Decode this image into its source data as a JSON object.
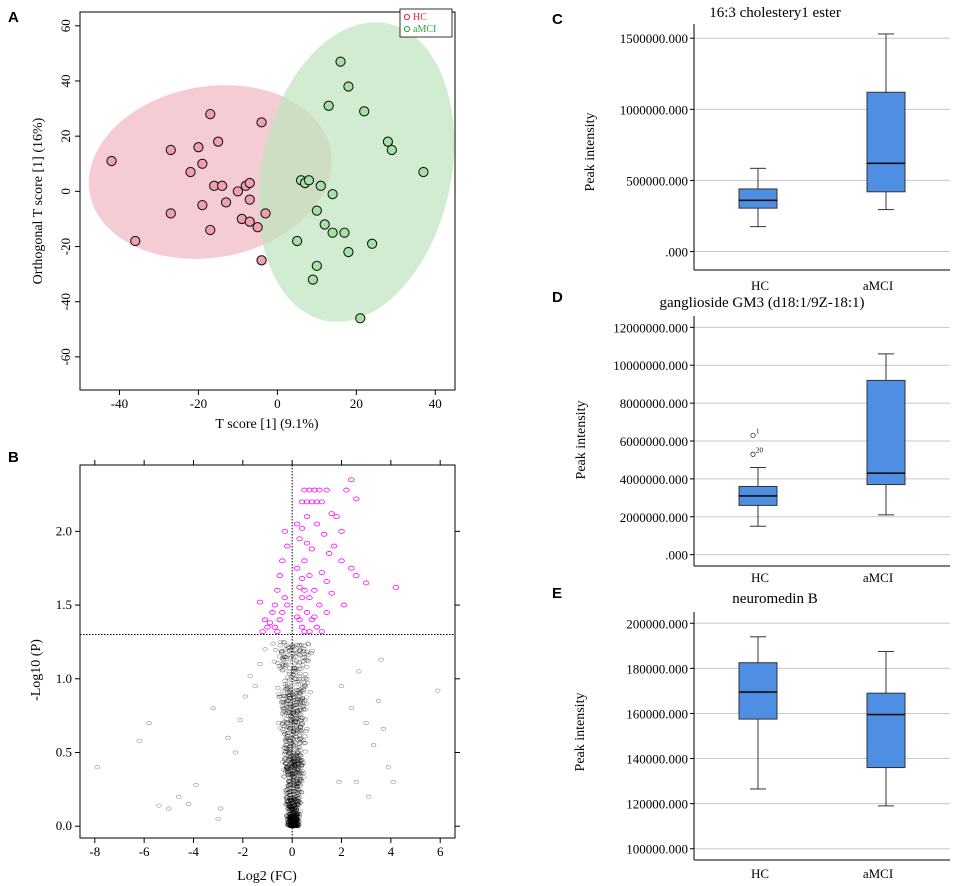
{
  "panels": {
    "a": {
      "letter": "A",
      "chart_data": {
        "type": "scatter",
        "xlabel": "T score [1] (9.1%)",
        "ylabel": "Orthogonal T score [1] (16%)",
        "xlim": [
          -50,
          45
        ],
        "ylim": [
          -72,
          65
        ],
        "xticks": [
          "-40",
          "-20",
          "0",
          "20",
          "40"
        ],
        "xtick_values": [
          -40,
          -20,
          0,
          20,
          40
        ],
        "yticks": [
          "60",
          "40",
          "20",
          "0",
          "-20",
          "-40",
          "-60"
        ],
        "ytick_values": [
          60,
          40,
          20,
          0,
          -20,
          -40,
          -60
        ],
        "legend": [
          {
            "name": "HC",
            "color": "#d9262e"
          },
          {
            "name": "aMCI",
            "color": "#2ea043"
          }
        ],
        "series": [
          {
            "name": "HC",
            "fill": "#f2a0b0",
            "ellipse_fill": "#f1b9c2",
            "points": [
              [
                -42,
                11
              ],
              [
                -36,
                -18
              ],
              [
                -27,
                15
              ],
              [
                -27,
                -8
              ],
              [
                -22,
                7
              ],
              [
                -20,
                16
              ],
              [
                -19,
                -5
              ],
              [
                -19,
                10
              ],
              [
                -17,
                -14
              ],
              [
                -17,
                28
              ],
              [
                -16,
                2
              ],
              [
                -15,
                18
              ],
              [
                -14,
                2
              ],
              [
                -13,
                -4
              ],
              [
                -10,
                0
              ],
              [
                -9,
                -10
              ],
              [
                -8,
                2
              ],
              [
                -7,
                -3
              ],
              [
                -7,
                -11
              ],
              [
                -7,
                3
              ],
              [
                -5,
                -13
              ],
              [
                -4,
                25
              ],
              [
                -4,
                -25
              ],
              [
                -3,
                -8
              ]
            ]
          },
          {
            "name": "aMCI",
            "fill": "#a7e0a5",
            "ellipse_fill": "#bfe5be",
            "points": [
              [
                5,
                -18
              ],
              [
                6,
                4
              ],
              [
                7,
                3
              ],
              [
                8,
                4
              ],
              [
                9,
                -32
              ],
              [
                10,
                -27
              ],
              [
                10,
                -7
              ],
              [
                11,
                2
              ],
              [
                12,
                -12
              ],
              [
                13,
                31
              ],
              [
                14,
                -1
              ],
              [
                14,
                -15
              ],
              [
                16,
                47
              ],
              [
                17,
                -15
              ],
              [
                18,
                -22
              ],
              [
                18,
                38
              ],
              [
                21,
                -46
              ],
              [
                22,
                29
              ],
              [
                24,
                -19
              ],
              [
                28,
                18
              ],
              [
                29,
                15
              ],
              [
                37,
                7
              ]
            ]
          }
        ],
        "ellipses": [
          {
            "series": "HC",
            "cx": -17,
            "cy": 7,
            "rx": 31,
            "ry": 31,
            "rotate": -10
          },
          {
            "series": "aMCI",
            "cx": 20,
            "cy": 7,
            "rx": 24,
            "ry": 55,
            "rotate": 12
          }
        ]
      }
    },
    "b": {
      "letter": "B",
      "chart_data": {
        "type": "scatter",
        "xlabel": "Log2 (FC)",
        "ylabel": "-Log10 (P)",
        "xlim": [
          -8.6,
          6.6
        ],
        "ylim": [
          -0.08,
          2.45
        ],
        "xticks": [
          "-8",
          "-6",
          "-4",
          "-2",
          "0",
          "2",
          "4",
          "6"
        ],
        "xtick_values": [
          -8,
          -6,
          -4,
          -2,
          0,
          2,
          4,
          6
        ],
        "yticks": [
          "0.0",
          "0.5",
          "1.0",
          "1.5",
          "2.0"
        ],
        "ytick_values": [
          0,
          0.5,
          1.0,
          1.5,
          2.0
        ],
        "threshold_y": 1.3,
        "zero_x": 0,
        "colors": {
          "significant": "#ff00ff",
          "nonsignificant": "#000000"
        },
        "significant_points": [
          [
            0.4,
            2.2
          ],
          [
            0.6,
            2.2
          ],
          [
            0.8,
            2.2
          ],
          [
            1.0,
            2.2
          ],
          [
            1.2,
            2.2
          ],
          [
            0.5,
            2.28
          ],
          [
            0.7,
            2.28
          ],
          [
            0.9,
            2.28
          ],
          [
            1.1,
            2.28
          ],
          [
            1.4,
            2.28
          ],
          [
            0.6,
            2.1
          ],
          [
            1.6,
            2.12
          ],
          [
            1.8,
            2.1
          ],
          [
            2.0,
            2.0
          ],
          [
            2.2,
            2.28
          ],
          [
            2.4,
            2.35
          ],
          [
            2.6,
            2.22
          ],
          [
            1.3,
            1.98
          ],
          [
            1.5,
            1.85
          ],
          [
            1.7,
            1.9
          ],
          [
            2.0,
            1.8
          ],
          [
            2.4,
            1.75
          ],
          [
            2.6,
            1.7
          ],
          [
            3.0,
            1.65
          ],
          [
            4.2,
            1.62
          ],
          [
            0.3,
            1.95
          ],
          [
            0.5,
            1.8
          ],
          [
            0.7,
            1.7
          ],
          [
            0.9,
            1.6
          ],
          [
            1.1,
            1.5
          ],
          [
            0.4,
            1.55
          ],
          [
            0.6,
            1.45
          ],
          [
            0.8,
            1.4
          ],
          [
            1.0,
            1.35
          ],
          [
            0.3,
            1.4
          ],
          [
            0.5,
            1.32
          ],
          [
            0.2,
            1.75
          ],
          [
            0.3,
            1.62
          ],
          [
            0.4,
            1.68
          ],
          [
            0.6,
            1.92
          ],
          [
            0.7,
            1.55
          ],
          [
            0.9,
            1.42
          ],
          [
            1.2,
            1.32
          ],
          [
            -0.2,
            1.9
          ],
          [
            -0.3,
            2.0
          ],
          [
            -0.4,
            1.8
          ],
          [
            -0.5,
            1.7
          ],
          [
            -0.6,
            1.6
          ],
          [
            -0.7,
            1.5
          ],
          [
            -0.8,
            1.45
          ],
          [
            -0.9,
            1.38
          ],
          [
            -1.0,
            1.35
          ],
          [
            -0.3,
            1.55
          ],
          [
            -0.5,
            1.4
          ],
          [
            -0.7,
            1.35
          ],
          [
            -1.1,
            1.4
          ],
          [
            -1.3,
            1.52
          ],
          [
            -0.2,
            1.5
          ],
          [
            -0.4,
            1.45
          ],
          [
            0.2,
            1.42
          ],
          [
            0.3,
            1.48
          ],
          [
            0.4,
            2.02
          ],
          [
            0.5,
            1.6
          ],
          [
            0.2,
            2.05
          ],
          [
            1.0,
            2.05
          ],
          [
            1.2,
            1.72
          ],
          [
            1.4,
            1.66
          ],
          [
            0.8,
            1.88
          ],
          [
            1.6,
            1.58
          ],
          [
            2.1,
            1.5
          ],
          [
            -0.6,
            1.32
          ],
          [
            -1.2,
            1.32
          ],
          [
            0.7,
            1.32
          ],
          [
            1.4,
            1.45
          ],
          [
            0.4,
            1.35
          ]
        ],
        "outlier_points": [
          [
            -7.9,
            0.4
          ],
          [
            -6.2,
            0.58
          ],
          [
            -5.8,
            0.7
          ],
          [
            -5.4,
            0.14
          ],
          [
            -5.0,
            0.12
          ],
          [
            -4.6,
            0.2
          ],
          [
            -4.2,
            0.15
          ],
          [
            -3.9,
            0.28
          ],
          [
            -3.2,
            0.8
          ],
          [
            -3.0,
            0.05
          ],
          [
            -2.9,
            0.12
          ],
          [
            -2.6,
            0.6
          ],
          [
            -2.3,
            0.5
          ],
          [
            -2.1,
            0.72
          ],
          [
            -1.9,
            0.88
          ],
          [
            -1.7,
            1.02
          ],
          [
            -1.5,
            0.95
          ],
          [
            -1.3,
            1.1
          ],
          [
            -1.1,
            1.2
          ],
          [
            2.0,
            0.95
          ],
          [
            2.4,
            0.8
          ],
          [
            2.7,
            1.05
          ],
          [
            3.0,
            0.7
          ],
          [
            3.3,
            0.55
          ],
          [
            3.5,
            0.85
          ],
          [
            3.7,
            0.66
          ],
          [
            3.9,
            0.4
          ],
          [
            4.1,
            0.3
          ],
          [
            5.9,
            0.92
          ],
          [
            3.6,
            1.13
          ],
          [
            3.1,
            0.2
          ],
          [
            2.6,
            0.3
          ],
          [
            1.9,
            0.3
          ]
        ]
      }
    },
    "c": {
      "letter": "C",
      "chart_data": {
        "type": "box",
        "title": "16:3 cholestery1 ester",
        "ylabel": "Peak intensity",
        "categories": [
          "HC",
          "aMCI"
        ],
        "ylim": [
          -130000,
          1600000
        ],
        "yticks": [
          ".000",
          "500000.000",
          "1000000.000",
          "1500000.000"
        ],
        "ytick_values": [
          0,
          500000,
          1000000,
          1500000
        ],
        "boxes": [
          {
            "min": 175000,
            "q1": 305000,
            "median": 360000,
            "q3": 440000,
            "max": 585000
          },
          {
            "min": 295000,
            "q1": 420000,
            "median": 620000,
            "q3": 1120000,
            "max": 1530000
          }
        ],
        "outliers": []
      }
    },
    "d": {
      "letter": "D",
      "chart_data": {
        "type": "box",
        "title": "ganglioside GM3 (d18:1/9Z-18:1)",
        "ylabel": "Peak intensity",
        "categories": [
          "HC",
          "aMCI"
        ],
        "ylim": [
          -600000,
          12600000
        ],
        "yticks": [
          ".000",
          "2000000.000",
          "4000000.000",
          "6000000.000",
          "8000000.000",
          "10000000.000",
          "12000000.000"
        ],
        "ytick_values": [
          0,
          2000000,
          4000000,
          6000000,
          8000000,
          10000000,
          12000000
        ],
        "boxes": [
          {
            "min": 1500000,
            "q1": 2600000,
            "median": 3100000,
            "q3": 3600000,
            "max": 4600000
          },
          {
            "min": 2100000,
            "q1": 3700000,
            "median": 4300000,
            "q3": 9200000,
            "max": 10600000
          }
        ],
        "outliers": [
          {
            "group": 0,
            "value": 6300000,
            "label": "1"
          },
          {
            "group": 0,
            "value": 5300000,
            "label": "20"
          }
        ]
      }
    },
    "e": {
      "letter": "E",
      "chart_data": {
        "type": "box",
        "title": "neuromedin B",
        "ylabel": "Peak intensity",
        "categories": [
          "HC",
          "aMCI"
        ],
        "ylim": [
          95000,
          205000
        ],
        "yticks": [
          "100000.000",
          "120000.000",
          "140000.000",
          "160000.000",
          "180000.000",
          "200000.000"
        ],
        "ytick_values": [
          100000,
          120000,
          140000,
          160000,
          180000,
          200000
        ],
        "boxes": [
          {
            "min": 126500,
            "q1": 157500,
            "median": 169500,
            "q3": 182500,
            "max": 194000
          },
          {
            "min": 119000,
            "q1": 136000,
            "median": 159500,
            "q3": 169000,
            "max": 187500
          }
        ],
        "outliers": []
      }
    }
  },
  "style": {
    "box_fill": "#4f8fe3",
    "box_stroke": "#333333",
    "grid": "#c8c8c8"
  }
}
